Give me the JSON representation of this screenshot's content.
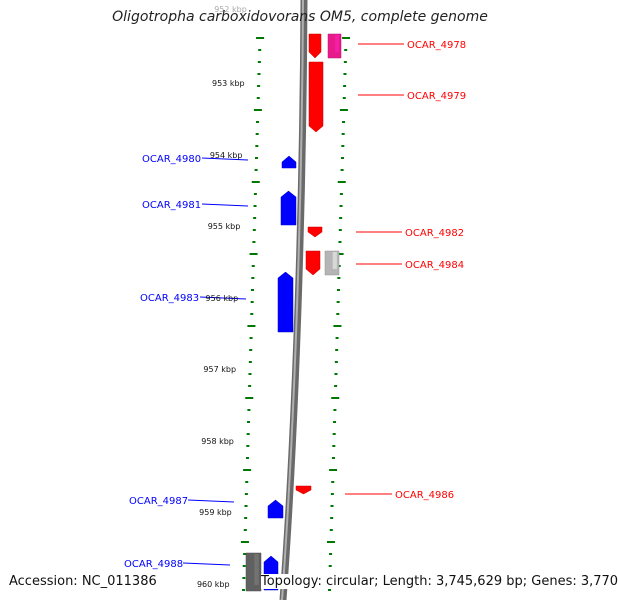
{
  "title": "Oligotropha carboxidovorans OM5, complete genome",
  "footer": {
    "accession": "Accession: NC_011386",
    "summary": "Topology: circular; Length: 3,745,629 bp; Genes: 3,770"
  },
  "ruler": {
    "unit": "kbp",
    "labels": [
      "952 kbp",
      "953 kbp",
      "954 kbp",
      "955 kbp",
      "956 kbp",
      "957 kbp",
      "958 kbp",
      "959 kbp",
      "960 kbp"
    ]
  },
  "colors": {
    "forward": "#ff0000",
    "reverse": "#0000ff",
    "pink": "#e8198b",
    "gray": "#b5b5b5",
    "darkgray": "#606060",
    "tick": "#007700",
    "backbone": "#888888"
  },
  "genes": [
    {
      "name": "OCAR_4978",
      "strand": "forward",
      "color": "forward"
    },
    {
      "name": "OCAR_4979",
      "strand": "forward",
      "color": "forward"
    },
    {
      "name": "OCAR_4980",
      "strand": "reverse",
      "color": "reverse"
    },
    {
      "name": "OCAR_4981",
      "strand": "reverse",
      "color": "reverse"
    },
    {
      "name": "OCAR_4982",
      "strand": "forward",
      "color": "forward"
    },
    {
      "name": "OCAR_4984",
      "strand": "forward",
      "color": "forward"
    },
    {
      "name": "OCAR_4983",
      "strand": "reverse",
      "color": "reverse"
    },
    {
      "name": "OCAR_4986",
      "strand": "forward",
      "color": "forward"
    },
    {
      "name": "OCAR_4987",
      "strand": "reverse",
      "color": "reverse"
    },
    {
      "name": "OCAR_4988",
      "strand": "reverse",
      "color": "reverse"
    }
  ]
}
